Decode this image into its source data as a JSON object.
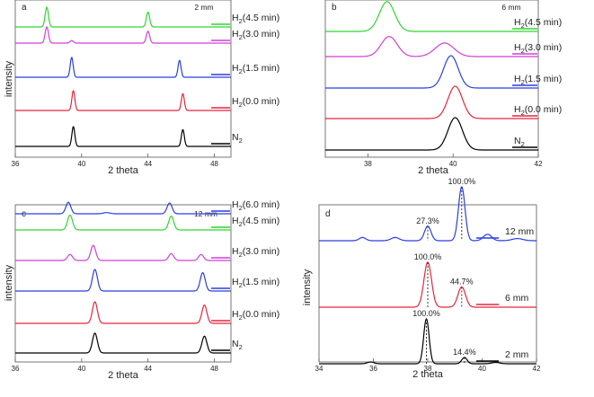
{
  "chart_data": [
    {
      "type": "line",
      "panel": "a",
      "corner_label": "2 mm",
      "xlabel": "2 theta",
      "ylabel": "intensity",
      "xlim": [
        36,
        49
      ],
      "ticks": [
        36,
        40,
        44,
        48
      ],
      "tick_labels": [
        "36",
        "40",
        "44",
        "48"
      ],
      "series": [
        {
          "name": "N2",
          "label_base": "N",
          "label_sub": "2",
          "label_tail": "",
          "color": "#000000",
          "peaks": [
            {
              "x": 39.5,
              "h": 1.0,
              "w": 0.09
            },
            {
              "x": 46.1,
              "h": 0.85,
              "w": 0.09
            }
          ]
        },
        {
          "name": "H2(0.0 min)",
          "label_base": "H",
          "label_sub": "2",
          "label_tail": "(0.0 min)",
          "color": "#e8253a",
          "peaks": [
            {
              "x": 39.5,
              "h": 1.0,
              "w": 0.09
            },
            {
              "x": 46.1,
              "h": 0.85,
              "w": 0.09
            }
          ]
        },
        {
          "name": "H2(1.5 min)",
          "label_base": "H",
          "label_sub": "2",
          "label_tail": "(1.5 min)",
          "color": "#2a3fe0",
          "peaks": [
            {
              "x": 39.4,
              "h": 1.0,
              "w": 0.09
            },
            {
              "x": 45.9,
              "h": 0.85,
              "w": 0.09
            }
          ]
        },
        {
          "name": "H2(3.0 min)",
          "label_base": "H",
          "label_sub": "2",
          "label_tail": "(3.0 min)",
          "color": "#d23fd8",
          "peaks": [
            {
              "x": 37.9,
              "h": 0.75,
              "w": 0.1
            },
            {
              "x": 39.4,
              "h": 0.12,
              "w": 0.1
            },
            {
              "x": 44.0,
              "h": 0.55,
              "w": 0.1
            }
          ]
        },
        {
          "name": "H2(4.5 min)",
          "label_base": "H",
          "label_sub": "2",
          "label_tail": "(4.5 min)",
          "color": "#2ed62e",
          "peaks": [
            {
              "x": 37.9,
              "h": 1.0,
              "w": 0.1
            },
            {
              "x": 44.0,
              "h": 0.75,
              "w": 0.1
            }
          ]
        }
      ]
    },
    {
      "type": "line",
      "panel": "b",
      "corner_label": "6 mm",
      "xlabel": "2 theta",
      "ylabel": "",
      "xlim": [
        37,
        42
      ],
      "ticks": [
        38,
        40,
        42
      ],
      "tick_labels": [
        "38",
        "40",
        "42"
      ],
      "series": [
        {
          "name": "N2",
          "label_base": "N",
          "label_sub": "2",
          "label_tail": "",
          "color": "#000000",
          "peaks": [
            {
              "x": 40.05,
              "h": 1.0,
              "w": 0.17
            }
          ]
        },
        {
          "name": "H2(0.0 min)",
          "label_base": "H",
          "label_sub": "2",
          "label_tail": "(0.0 min)",
          "color": "#e8253a",
          "peaks": [
            {
              "x": 40.05,
              "h": 1.0,
              "w": 0.17
            }
          ]
        },
        {
          "name": "H2(1.5 min)",
          "label_base": "H",
          "label_sub": "2",
          "label_tail": "(1.5 min)",
          "color": "#2a3fe0",
          "peaks": [
            {
              "x": 39.95,
              "h": 1.0,
              "w": 0.17
            }
          ]
        },
        {
          "name": "H2(3.0 min)",
          "label_base": "H",
          "label_sub": "2",
          "label_tail": "(3.0 min)",
          "color": "#d23fd8",
          "peaks": [
            {
              "x": 38.5,
              "h": 0.62,
              "w": 0.19
            },
            {
              "x": 39.8,
              "h": 0.42,
              "w": 0.22
            }
          ]
        },
        {
          "name": "H2(4.5 min)",
          "label_base": "H",
          "label_sub": "2",
          "label_tail": "(4.5 min)",
          "color": "#2ed62e",
          "peaks": [
            {
              "x": 38.45,
              "h": 0.92,
              "w": 0.18
            }
          ]
        }
      ]
    },
    {
      "type": "line",
      "panel": "c",
      "corner_label": "12 mm",
      "xlabel": "2 theta",
      "ylabel": "intensity",
      "xlim": [
        36,
        49
      ],
      "ticks": [
        36,
        40,
        44,
        48
      ],
      "tick_labels": [
        "36",
        "40",
        "44",
        "48"
      ],
      "series": [
        {
          "name": "N2",
          "label_base": "N",
          "label_sub": "2",
          "label_tail": "",
          "color": "#000000",
          "peaks": [
            {
              "x": 40.8,
              "h": 1.0,
              "w": 0.15
            },
            {
              "x": 47.4,
              "h": 0.85,
              "w": 0.15
            }
          ]
        },
        {
          "name": "H2(0.0 min)",
          "label_base": "H",
          "label_sub": "2",
          "label_tail": "(0.0 min)",
          "color": "#e8253a",
          "peaks": [
            {
              "x": 40.8,
              "h": 1.0,
              "w": 0.15
            },
            {
              "x": 47.4,
              "h": 0.85,
              "w": 0.15
            }
          ]
        },
        {
          "name": "H2(1.5 min)",
          "label_base": "H",
          "label_sub": "2",
          "label_tail": "(1.5 min)",
          "color": "#2a3fe0",
          "peaks": [
            {
              "x": 40.8,
              "h": 1.0,
              "w": 0.15
            },
            {
              "x": 47.3,
              "h": 0.85,
              "w": 0.15
            }
          ]
        },
        {
          "name": "H2(3.0 min)",
          "label_base": "H",
          "label_sub": "2",
          "label_tail": "(3.0 min)",
          "color": "#d23fd8",
          "peaks": [
            {
              "x": 39.3,
              "h": 0.28,
              "w": 0.15
            },
            {
              "x": 40.7,
              "h": 0.7,
              "w": 0.15
            },
            {
              "x": 45.4,
              "h": 0.32,
              "w": 0.15
            },
            {
              "x": 47.2,
              "h": 0.28,
              "w": 0.15
            }
          ]
        },
        {
          "name": "H2(4.5 min)",
          "label_base": "H",
          "label_sub": "2",
          "label_tail": "(4.5 min)",
          "color": "#2ed62e",
          "peaks": [
            {
              "x": 39.3,
              "h": 0.75,
              "w": 0.15
            },
            {
              "x": 45.4,
              "h": 0.7,
              "w": 0.15
            }
          ]
        },
        {
          "name": "H2(6.0 min)",
          "label_base": "H",
          "label_sub": "2",
          "label_tail": "(6.0 min)",
          "color": "#2a3fe0",
          "peaks": [
            {
              "x": 39.2,
              "h": 0.8,
              "w": 0.15
            },
            {
              "x": 41.5,
              "h": 0.08,
              "w": 0.2
            },
            {
              "x": 45.3,
              "h": 0.75,
              "w": 0.15
            }
          ]
        }
      ]
    },
    {
      "type": "line",
      "panel": "d",
      "corner_label": "",
      "xlabel": "2 theta",
      "ylabel": "intensity",
      "xlim": [
        34,
        42
      ],
      "ticks": [
        34,
        36,
        38,
        40,
        42
      ],
      "tick_labels": [
        "34",
        "36",
        "38",
        "40",
        "42"
      ],
      "series": [
        {
          "name": "2 mm",
          "label_base": "2 mm",
          "label_sub": "",
          "label_tail": "",
          "color": "#000000",
          "peaks": [
            {
              "x": 35.9,
              "h": 0.04,
              "w": 0.12
            },
            {
              "x": 37.95,
              "h": 1.0,
              "w": 0.1
            },
            {
              "x": 39.35,
              "h": 0.14,
              "w": 0.1
            },
            {
              "x": 40.5,
              "h": 0.03,
              "w": 0.15
            }
          ]
        },
        {
          "name": "6 mm",
          "label_base": "6 mm",
          "label_sub": "",
          "label_tail": "",
          "color": "#e8253a",
          "peaks": [
            {
              "x": 38.0,
              "h": 1.0,
              "w": 0.14
            },
            {
              "x": 39.25,
              "h": 0.45,
              "w": 0.14
            }
          ]
        },
        {
          "name": "12 mm",
          "label_base": "12 mm",
          "label_sub": "",
          "label_tail": "",
          "color": "#2a3fe0",
          "peaks": [
            {
              "x": 35.6,
              "h": 0.06,
              "w": 0.12
            },
            {
              "x": 36.8,
              "h": 0.06,
              "w": 0.15
            },
            {
              "x": 38.0,
              "h": 0.27,
              "w": 0.12
            },
            {
              "x": 39.25,
              "h": 1.0,
              "w": 0.12
            },
            {
              "x": 40.2,
              "h": 0.12,
              "w": 0.15
            },
            {
              "x": 41.3,
              "h": 0.04,
              "w": 0.2
            }
          ]
        }
      ],
      "annotations": [
        {
          "series": 2,
          "x": 38.0,
          "text": "27.3%"
        },
        {
          "series": 2,
          "x": 39.25,
          "text": "100.0%"
        },
        {
          "series": 1,
          "x": 38.0,
          "text": "100.0%"
        },
        {
          "series": 1,
          "x": 39.25,
          "text": "44.7%"
        },
        {
          "series": 0,
          "x": 37.95,
          "text": "100.0%"
        },
        {
          "series": 0,
          "x": 39.35,
          "text": "14.4%"
        }
      ]
    }
  ]
}
